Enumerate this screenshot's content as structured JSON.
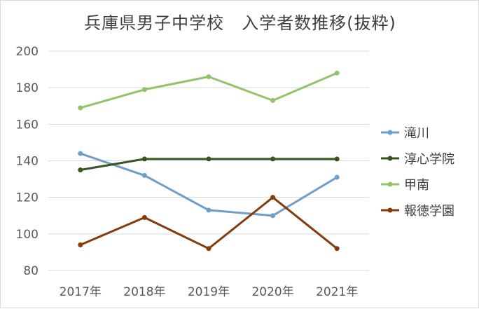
{
  "chart_data": {
    "type": "line",
    "title": "兵庫県男子中学校　入学者数推移(抜粋)",
    "xlabel": "",
    "ylabel": "",
    "categories": [
      "2017年",
      "2018年",
      "2019年",
      "2020年",
      "2021年"
    ],
    "ylim": [
      80,
      200
    ],
    "yticks": [
      80,
      100,
      120,
      140,
      160,
      180,
      200
    ],
    "grid": true,
    "legend_position": "right",
    "series": [
      {
        "name": "滝川",
        "color": "#6f9ecb",
        "values": [
          144,
          132,
          113,
          110,
          131
        ]
      },
      {
        "name": "淳心学院",
        "color": "#375623",
        "values": [
          135,
          141,
          141,
          141,
          141
        ]
      },
      {
        "name": "甲南",
        "color": "#92c36a",
        "values": [
          169,
          179,
          186,
          173,
          188
        ]
      },
      {
        "name": "報徳学園",
        "color": "#843c0c",
        "values": [
          94,
          109,
          92,
          120,
          92
        ]
      }
    ]
  }
}
